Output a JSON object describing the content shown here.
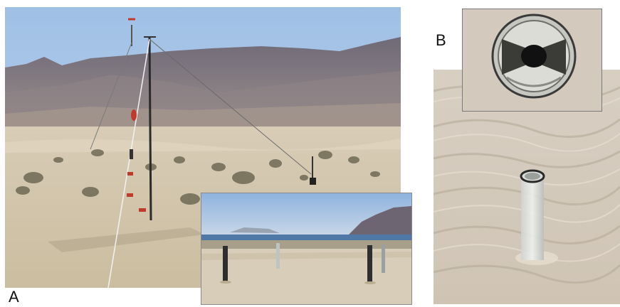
{
  "panels": {
    "a": {
      "label": "A"
    },
    "b": {
      "label": "B"
    }
  }
}
